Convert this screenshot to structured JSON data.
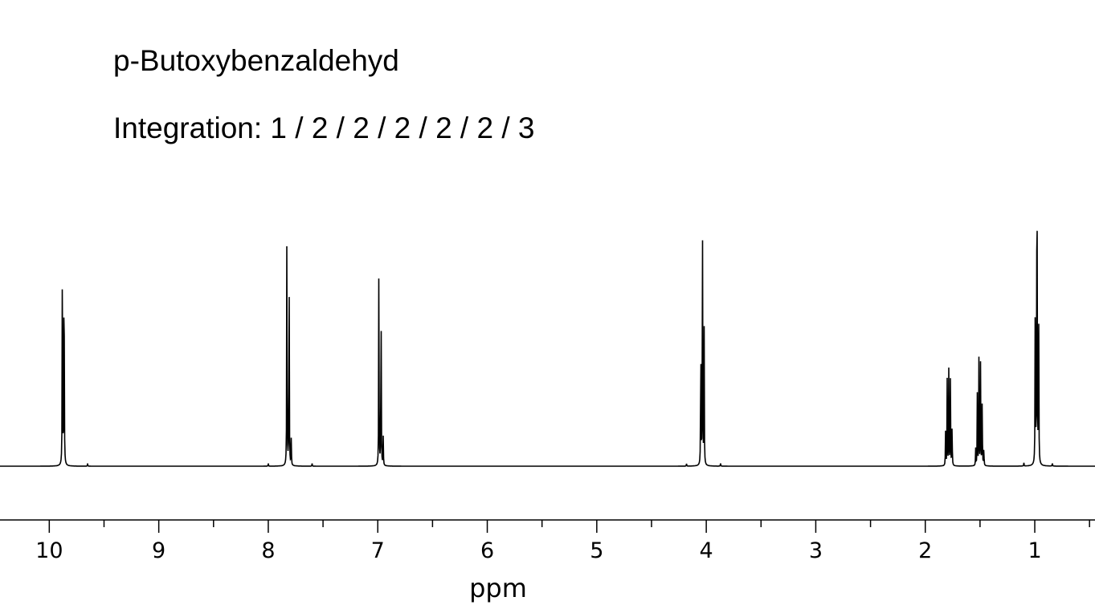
{
  "chart_data": {
    "type": "line",
    "title": "p-Butoxybenzaldehyd",
    "subtitle": "Integration: 1 / 2 / 2 / 2 / 2 / 2 / 3",
    "xlabel": "ppm",
    "ylabel": "",
    "xlim": [
      10.45,
      0.45
    ],
    "x_reversed": true,
    "ylim": [
      0,
      1
    ],
    "grid": false,
    "legend": "none",
    "major_ticks": [
      10,
      9,
      8,
      7,
      6,
      5,
      4,
      3,
      2,
      1
    ],
    "tick_labels": [
      "10",
      "9",
      "8",
      "7",
      "6",
      "5",
      "4",
      "3",
      "2",
      "1"
    ],
    "minor_ticks": [
      9.5,
      8.5,
      7.5,
      6.5,
      5.5,
      4.5,
      3.5,
      2.5,
      1.5,
      0.5
    ],
    "series": [
      {
        "peaks": [
          {
            "ppm": 9.88,
            "height": 0.622
          },
          {
            "ppm": 9.865,
            "height": 0.62
          },
          {
            "ppm": 7.83,
            "height": 0.57
          },
          {
            "ppm": 7.81,
            "height": 0.546
          },
          {
            "ppm": 7.79,
            "height": 0.06
          },
          {
            "ppm": 6.99,
            "height": 0.475
          },
          {
            "ppm": 6.97,
            "height": 0.45
          },
          {
            "ppm": 6.95,
            "height": 0.065
          },
          {
            "ppm": 4.05,
            "height": 0.332
          },
          {
            "ppm": 4.035,
            "height": 0.64
          },
          {
            "ppm": 4.02,
            "height": 0.34
          },
          {
            "ppm": 1.815,
            "height": 0.077
          },
          {
            "ppm": 1.8,
            "height": 0.188
          },
          {
            "ppm": 1.785,
            "height": 0.215
          },
          {
            "ppm": 1.77,
            "height": 0.21
          },
          {
            "ppm": 1.755,
            "height": 0.1
          },
          {
            "ppm": 1.54,
            "height": 0.04
          },
          {
            "ppm": 1.525,
            "height": 0.158
          },
          {
            "ppm": 1.51,
            "height": 0.235
          },
          {
            "ppm": 1.495,
            "height": 0.24
          },
          {
            "ppm": 1.48,
            "height": 0.16
          },
          {
            "ppm": 1.465,
            "height": 0.045
          },
          {
            "ppm": 0.995,
            "height": 0.57
          },
          {
            "ppm": 0.98,
            "height": 1.0
          },
          {
            "ppm": 0.965,
            "height": 0.496
          },
          {
            "ppm": 9.65,
            "height": 0.006
          },
          {
            "ppm": 8.0,
            "height": 0.006
          },
          {
            "ppm": 7.6,
            "height": 0.006
          },
          {
            "ppm": 4.18,
            "height": 0.006
          },
          {
            "ppm": 3.87,
            "height": 0.008
          },
          {
            "ppm": 1.1,
            "height": 0.008
          },
          {
            "ppm": 0.84,
            "height": 0.008
          }
        ]
      }
    ]
  }
}
